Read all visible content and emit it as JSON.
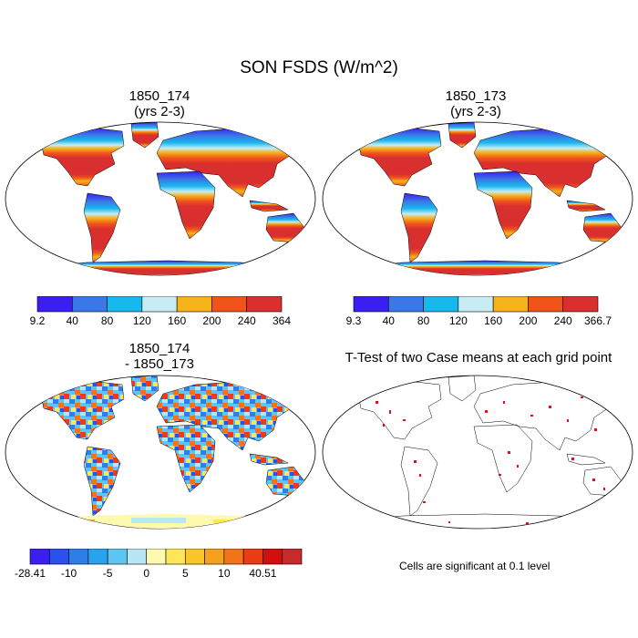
{
  "main_title": "SON FSDS (W/m^2)",
  "panels": [
    {
      "title_line1": "1850_174",
      "title_line2": "(yrs 2-3)"
    },
    {
      "title_line1": "1850_173",
      "title_line2": "(yrs 2-3)"
    },
    {
      "title_line1": "1850_174",
      "title_line2": "- 1850_173"
    },
    {
      "title_line1": "T-Test of two Case means at each grid point",
      "title_line2": ""
    }
  ],
  "colorbars": [
    {
      "colors": [
        "#3b1ff0",
        "#3a78e6",
        "#18b8ef",
        "#c8ecf4",
        "#f6b21a",
        "#f1541b",
        "#d92f2f"
      ],
      "labels": [
        "9.2",
        "40",
        "80",
        "120",
        "160",
        "200",
        "240",
        "364"
      ]
    },
    {
      "colors": [
        "#3b1ff0",
        "#3a78e6",
        "#18b8ef",
        "#c8ecf4",
        "#f6b21a",
        "#f1541b",
        "#d92f2f"
      ],
      "labels": [
        "9.3",
        "40",
        "80",
        "120",
        "160",
        "200",
        "240",
        "366.7"
      ]
    },
    {
      "colors": [
        "#3b1ff0",
        "#2a50f0",
        "#2e7ee8",
        "#28a4ef",
        "#5ec4f1",
        "#b8e6f4",
        "#fdfab0",
        "#fde65a",
        "#fbc62a",
        "#f6a11c",
        "#f27318",
        "#ec3b17",
        "#d40d0d",
        "#c72a2a"
      ],
      "labels": [
        "-28.41",
        "-10",
        "-5",
        "0",
        "5",
        "10",
        "40.51"
      ]
    }
  ],
  "significance_note": "Cells are significant at 0.1 level",
  "colors": {
    "outline": "#000000",
    "significant": "#e0101a"
  }
}
